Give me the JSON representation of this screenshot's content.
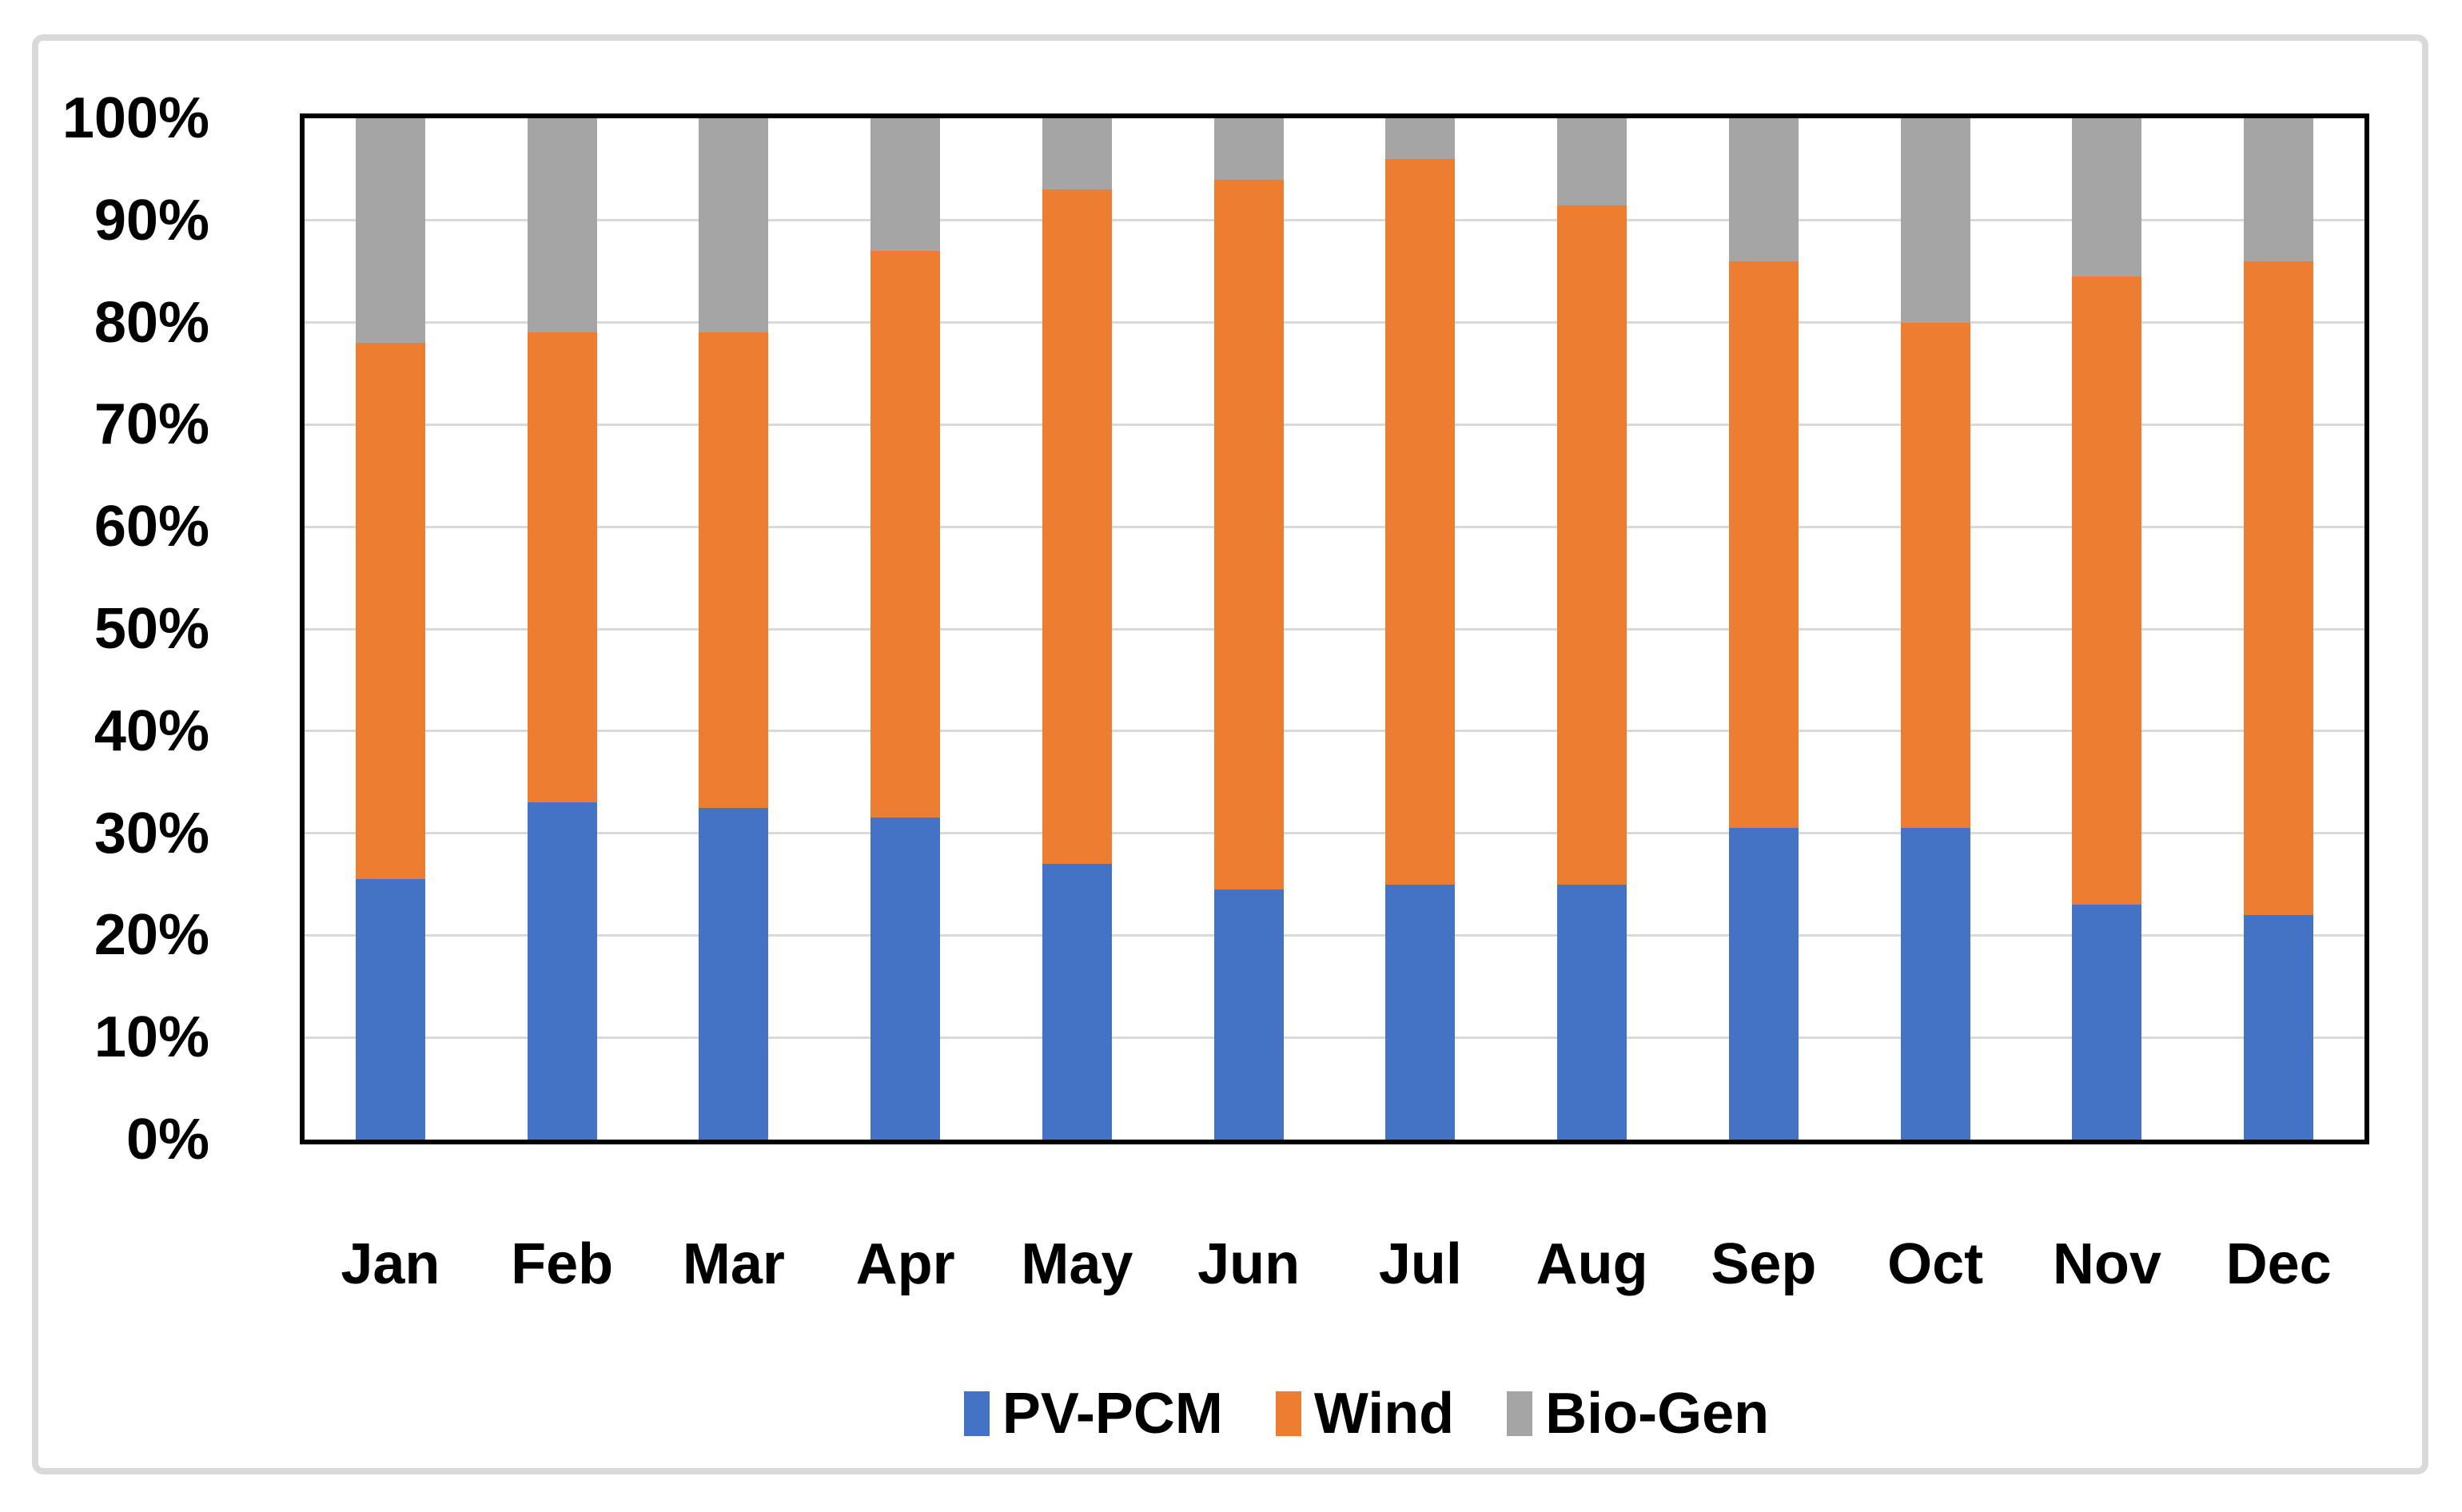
{
  "chart_data": {
    "type": "bar",
    "subtype": "stacked-100-percent",
    "title": "",
    "xlabel": "",
    "ylabel": "",
    "categories": [
      "Jan",
      "Feb",
      "Mar",
      "Apr",
      "May",
      "Jun",
      "Jul",
      "Aug",
      "Sep",
      "Oct",
      "Nov",
      "Dec"
    ],
    "series": [
      {
        "name": "PV-PCM",
        "color": "#4472C4",
        "values": [
          25.5,
          33,
          32.5,
          31.5,
          27,
          24.5,
          25,
          25,
          30.5,
          30.5,
          23,
          22
        ]
      },
      {
        "name": "Wind",
        "color": "#ED7D31",
        "values": [
          52.5,
          46,
          46.5,
          55.5,
          66,
          69.5,
          71,
          66.5,
          55.5,
          49.5,
          61.5,
          64
        ]
      },
      {
        "name": "Bio-Gen",
        "color": "#A5A5A5",
        "values": [
          22,
          21,
          21,
          13,
          7,
          6,
          4,
          8.5,
          14,
          20,
          15.5,
          14
        ]
      }
    ],
    "ylim": [
      0,
      100
    ],
    "ytick_step": 10,
    "ytick_labels": [
      "0%",
      "10%",
      "20%",
      "30%",
      "40%",
      "50%",
      "60%",
      "70%",
      "80%",
      "90%",
      "100%"
    ],
    "grid": "horizontal",
    "gridline_color": "#D9D9D9",
    "plot_border_color": "#000000",
    "frame_border_color": "#D9D9D9",
    "background_color": "#FFFFFF",
    "text_color": "#000000",
    "legend_position": "bottom"
  }
}
